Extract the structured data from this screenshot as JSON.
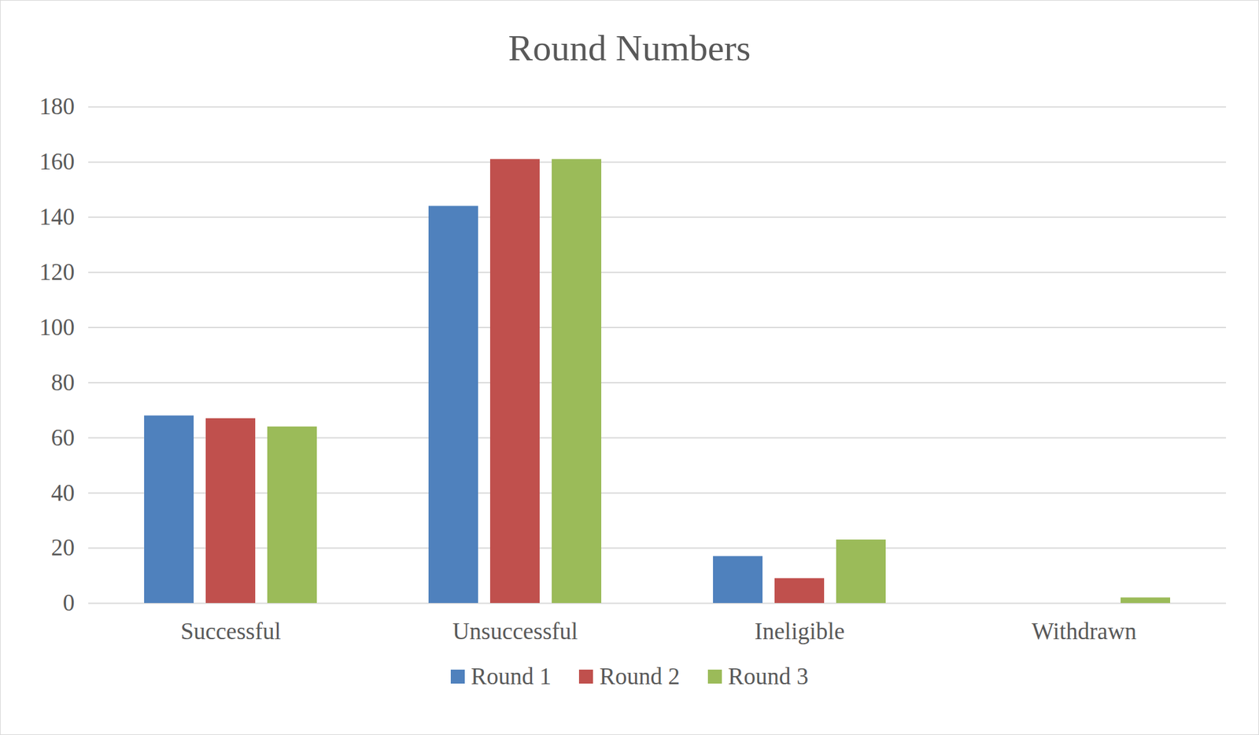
{
  "chart_data": {
    "type": "bar",
    "title": "Round Numbers",
    "categories": [
      "Successful",
      "Unsuccessful",
      "Ineligible",
      "Withdrawn"
    ],
    "series": [
      {
        "name": "Round 1",
        "color": "#4f81bd",
        "values": [
          68,
          144,
          17,
          0
        ]
      },
      {
        "name": "Round 2",
        "color": "#c0504d",
        "values": [
          67,
          161,
          9,
          0
        ]
      },
      {
        "name": "Round 3",
        "color": "#9bbb59",
        "values": [
          64,
          161,
          23,
          2
        ]
      }
    ],
    "ylim": [
      0,
      180
    ],
    "yticks": [
      0,
      20,
      40,
      60,
      80,
      100,
      120,
      140,
      160,
      180
    ],
    "grid": true,
    "legend": "bottom"
  }
}
